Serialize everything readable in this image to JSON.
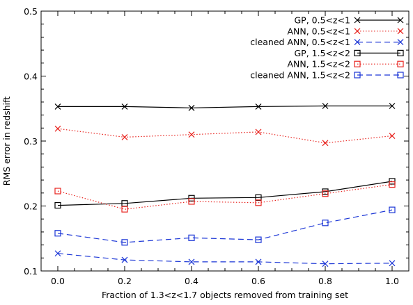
{
  "chart_data": {
    "type": "line",
    "title": "",
    "xlabel": "Fraction of 1.3<z<1.7 objects removed from training set",
    "ylabel": "RMS error in redshift",
    "xlim": [
      -0.05,
      1.05
    ],
    "ylim": [
      0.1,
      0.5
    ],
    "xticks": [
      0.0,
      0.2,
      0.4,
      0.6,
      0.8,
      1.0
    ],
    "xtick_labels": [
      "0.0",
      "0.2",
      "0.4",
      "0.6",
      "0.8",
      "1.0"
    ],
    "yticks": [
      0.1,
      0.2,
      0.3,
      0.4,
      0.5
    ],
    "ytick_labels": [
      "0.1",
      "0.2",
      "0.3",
      "0.4",
      "0.5"
    ],
    "grid": false,
    "legend_position": "top-right",
    "x": [
      0.0,
      0.2,
      0.4,
      0.6,
      0.8,
      1.0
    ],
    "series": [
      {
        "name": "GP, 0.5<z<1",
        "values": [
          0.353,
          0.353,
          0.351,
          0.353,
          0.354,
          0.354
        ],
        "color": "#000000",
        "dash": "solid",
        "marker": "x"
      },
      {
        "name": "ANN, 0.5<z<1",
        "values": [
          0.319,
          0.306,
          0.31,
          0.314,
          0.297,
          0.308
        ],
        "color": "#e8231e",
        "dash": "dotted",
        "marker": "x"
      },
      {
        "name": "cleaned ANN, 0.5<z<1",
        "values": [
          0.127,
          0.117,
          0.114,
          0.114,
          0.111,
          0.112
        ],
        "color": "#1a35d6",
        "dash": "dashed",
        "marker": "x"
      },
      {
        "name": "GP, 1.5<z<2",
        "values": [
          0.201,
          0.204,
          0.212,
          0.213,
          0.222,
          0.238
        ],
        "color": "#000000",
        "dash": "solid",
        "marker": "square"
      },
      {
        "name": "ANN, 1.5<z<2",
        "values": [
          0.223,
          0.195,
          0.207,
          0.205,
          0.219,
          0.233
        ],
        "color": "#e8231e",
        "dash": "dotted",
        "marker": "square"
      },
      {
        "name": "cleaned ANN, 1.5<z<2",
        "values": [
          0.158,
          0.144,
          0.151,
          0.148,
          0.174,
          0.194
        ],
        "color": "#1a35d6",
        "dash": "dashed",
        "marker": "square"
      }
    ]
  }
}
